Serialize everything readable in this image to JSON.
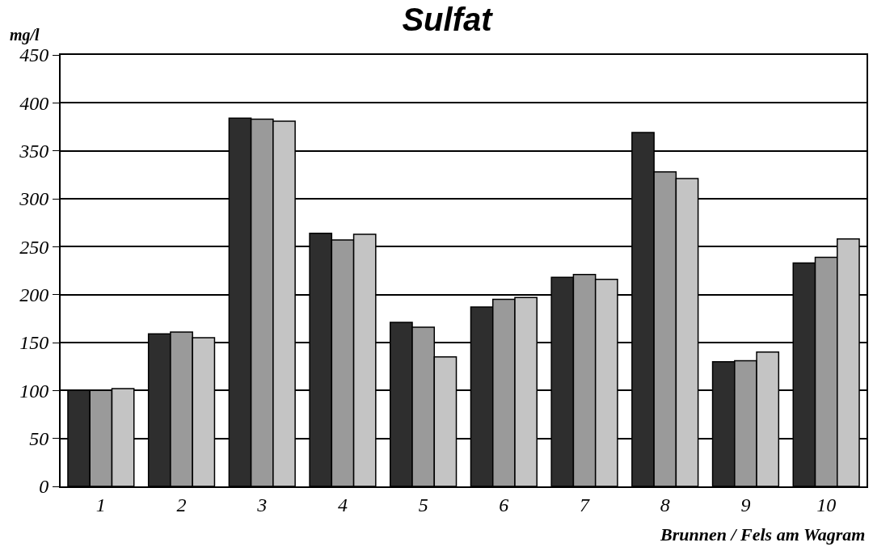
{
  "chart_data": {
    "type": "bar",
    "title": "Sulfat",
    "ylabel": "mg/l",
    "xlabel": "Brunnen / Fels am Wagram",
    "categories": [
      "1",
      "2",
      "3",
      "4",
      "5",
      "6",
      "7",
      "8",
      "9",
      "10"
    ],
    "series": [
      {
        "color": "#2e2e2e",
        "values": [
          100,
          159,
          384,
          264,
          171,
          187,
          218,
          369,
          130,
          233
        ]
      },
      {
        "color": "#9a9a9a",
        "values": [
          100,
          161,
          383,
          257,
          166,
          195,
          221,
          328,
          131,
          239
        ]
      },
      {
        "color": "#c4c4c4",
        "values": [
          102,
          155,
          381,
          263,
          135,
          197,
          216,
          321,
          140,
          258
        ]
      }
    ],
    "ylim": [
      0,
      450
    ],
    "yticks": [
      0,
      50,
      100,
      150,
      200,
      250,
      300,
      350,
      400,
      450
    ],
    "grid": "y"
  }
}
